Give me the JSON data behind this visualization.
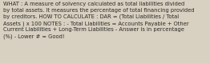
{
  "background_color": "#d8d0c0",
  "text_color": "#2b2b2b",
  "lines": [
    "WHAT : A measure of solvency calculated as total liabilities divided",
    "by total assets. It measures the percentage of total financing provided",
    "by creditors. HOW TO CALCULATE : DAR = (Total Liabilities / Total",
    "Assets ) x 100 NOTES : - Total Liabilities = Accounts Payable + Other",
    "Current Liabilities + Long-Term Liabilities - Answer is in percentage",
    "(%) - Lower # = Good!"
  ],
  "fontsize": 4.9,
  "figsize": [
    2.62,
    0.79
  ],
  "dpi": 100
}
